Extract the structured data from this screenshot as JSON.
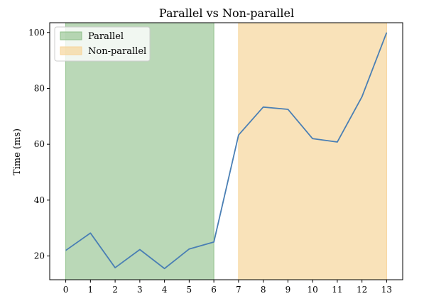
{
  "chart_data": {
    "type": "line",
    "title": "Parallel vs Non-parallel",
    "xlabel": "",
    "ylabel": "Time (ms)",
    "x": [
      0,
      1,
      2,
      3,
      4,
      5,
      6,
      7,
      8,
      9,
      10,
      11,
      12,
      13
    ],
    "xlim": [
      -0.65,
      13.65
    ],
    "ylim": [
      11.5,
      103.5
    ],
    "xticks": [
      "0",
      "1",
      "2",
      "3",
      "4",
      "5",
      "6",
      "7",
      "8",
      "9",
      "10",
      "11",
      "12",
      "13"
    ],
    "yticks": [
      20,
      40,
      60,
      80,
      100
    ],
    "series": [
      {
        "values": [
          22.0,
          28.2,
          15.8,
          22.3,
          15.5,
          22.5,
          25.0,
          63.3,
          73.3,
          72.5,
          62.0,
          60.8,
          77.0,
          100.0
        ],
        "color": "#4a7fb4"
      }
    ],
    "spans": [
      {
        "label": "Parallel",
        "x_start": 0,
        "x_end": 6,
        "color": "#8fc08a"
      },
      {
        "label": "Non-parallel",
        "x_start": 7,
        "x_end": 13,
        "color": "#f7d59b"
      }
    ],
    "legend": {
      "position": "top-left",
      "entries": [
        "Parallel",
        "Non-parallel"
      ]
    },
    "grid": false
  }
}
